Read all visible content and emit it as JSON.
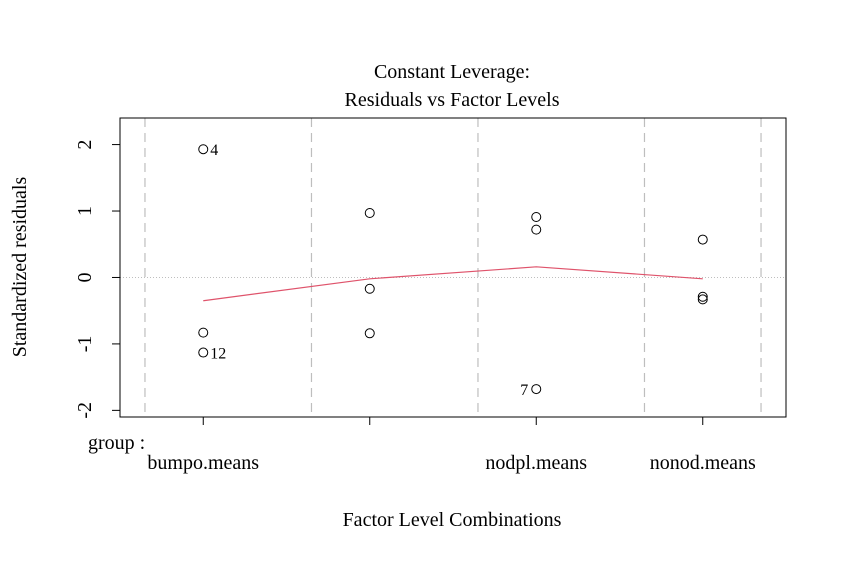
{
  "chart_data": {
    "type": "scatter",
    "title_line1": "Constant Leverage:",
    "title_line2": "Residuals vs Factor Levels",
    "xlabel": "Factor Level Combinations",
    "ylabel": "Standardized residuals",
    "factor_label": "group :",
    "categories": [
      "bumpo.means",
      "",
      "nodpl.means",
      "nonod.means"
    ],
    "ylim": [
      -2.1,
      2.4
    ],
    "yticks": [
      -2,
      -1,
      0,
      1,
      2
    ],
    "points": [
      {
        "group": 1,
        "y": 1.93,
        "label": "4"
      },
      {
        "group": 1,
        "y": -0.83,
        "label": ""
      },
      {
        "group": 1,
        "y": -1.13,
        "label": "12"
      },
      {
        "group": 2,
        "y": 0.97,
        "label": ""
      },
      {
        "group": 2,
        "y": -0.17,
        "label": ""
      },
      {
        "group": 2,
        "y": -0.84,
        "label": ""
      },
      {
        "group": 3,
        "y": 0.91,
        "label": ""
      },
      {
        "group": 3,
        "y": 0.72,
        "label": ""
      },
      {
        "group": 3,
        "y": -1.68,
        "label": "7"
      },
      {
        "group": 4,
        "y": 0.57,
        "label": ""
      },
      {
        "group": 4,
        "y": -0.29,
        "label": ""
      },
      {
        "group": 4,
        "y": -0.33,
        "label": ""
      }
    ],
    "smoother": [
      -0.35,
      -0.02,
      0.16,
      -0.02
    ],
    "colors": {
      "smoother": "#DF536B",
      "grid": "#BEBEBE",
      "zero_line": "#BEBEBE",
      "points": "#000000"
    }
  }
}
